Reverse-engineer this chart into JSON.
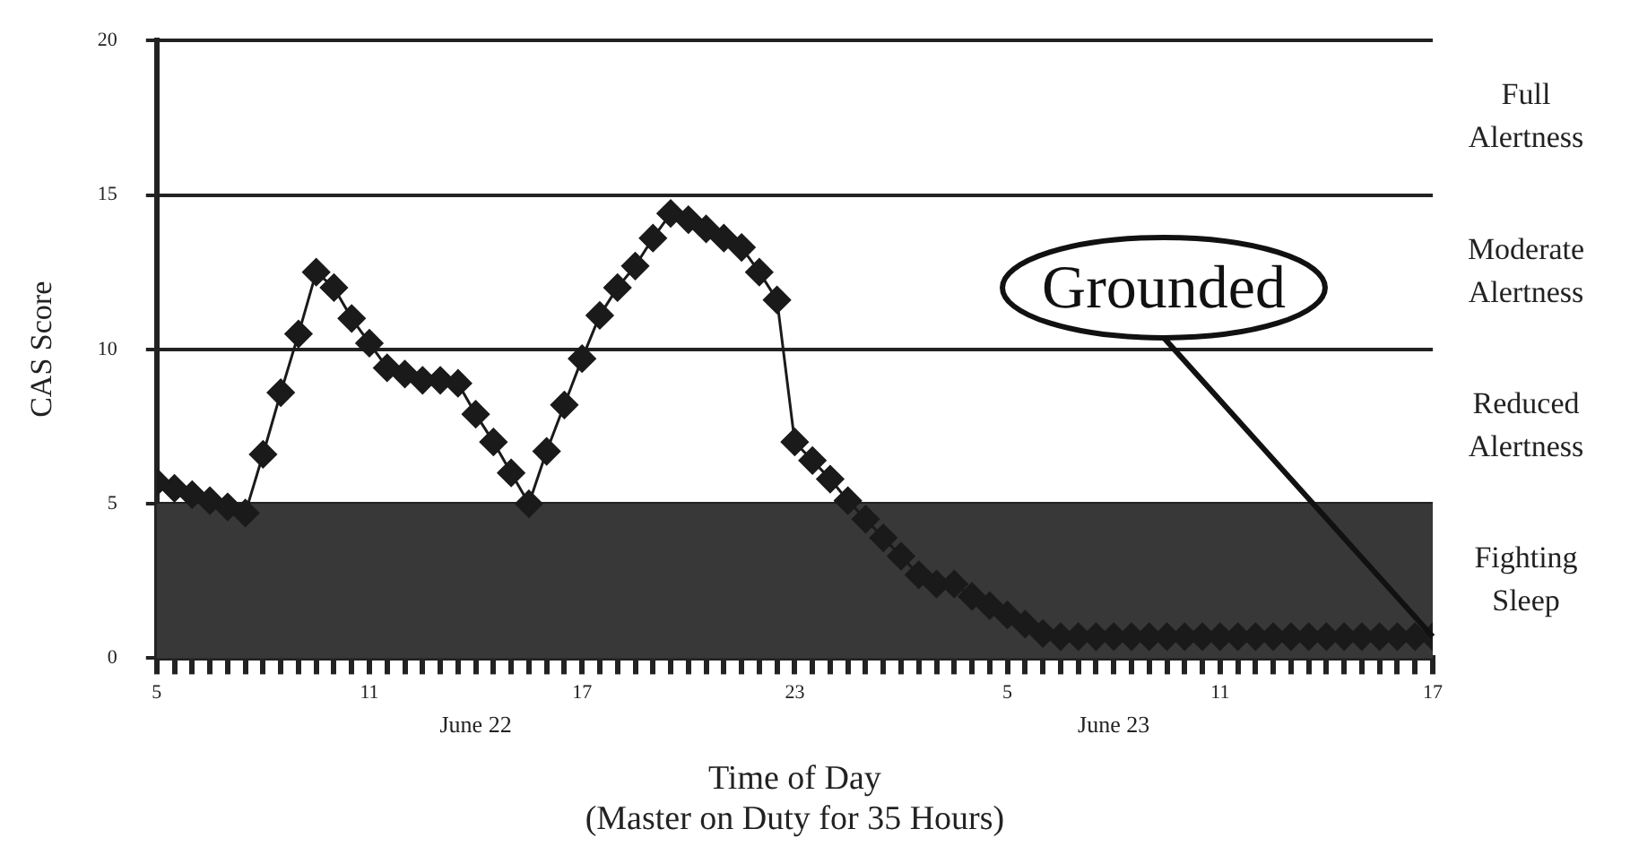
{
  "chart_data": {
    "type": "line",
    "xlabel": "Time of Day (Master on Duty for 35 Hours)",
    "ylabel": "CAS Score",
    "x": [
      "--06-22T05:00",
      "--06-22T05:30",
      "--06-22T06:00",
      "--06-22T06:30",
      "--06-22T07:00",
      "--06-22T07:30",
      "--06-22T08:00",
      "--06-22T08:30",
      "--06-22T09:00",
      "--06-22T09:30",
      "--06-22T10:00",
      "--06-22T10:30",
      "--06-22T11:00",
      "--06-22T11:30",
      "--06-22T12:00",
      "--06-22T12:30",
      "--06-22T13:00",
      "--06-22T13:30",
      "--06-22T14:00",
      "--06-22T14:30",
      "--06-22T15:00",
      "--06-22T15:30",
      "--06-22T16:00",
      "--06-22T16:30",
      "--06-22T17:00",
      "--06-22T17:30",
      "--06-22T18:00",
      "--06-22T18:30",
      "--06-22T19:00",
      "--06-22T19:30",
      "--06-22T20:00",
      "--06-22T20:30",
      "--06-22T21:00",
      "--06-22T21:30",
      "--06-22T22:00",
      "--06-22T22:30",
      "--06-22T23:00",
      "--06-22T23:30",
      "--06-23T00:00",
      "--06-23T00:30",
      "--06-23T01:00",
      "--06-23T01:30",
      "--06-23T02:00",
      "--06-23T02:30",
      "--06-23T03:00",
      "--06-23T03:30",
      "--06-23T04:00",
      "--06-23T04:30",
      "--06-23T05:00",
      "--06-23T05:30",
      "--06-23T06:00",
      "--06-23T06:30",
      "--06-23T07:00",
      "--06-23T07:30",
      "--06-23T08:00",
      "--06-23T08:30",
      "--06-23T09:00",
      "--06-23T09:30",
      "--06-23T10:00",
      "--06-23T10:30",
      "--06-23T11:00",
      "--06-23T11:30",
      "--06-23T12:00",
      "--06-23T12:30",
      "--06-23T13:00",
      "--06-23T13:30",
      "--06-23T14:00",
      "--06-23T14:30",
      "--06-23T15:00",
      "--06-23T15:30",
      "--06-23T16:00",
      "--06-23T16:30",
      "--06-23T17:00"
    ],
    "series": [
      {
        "color": "#1a1a1a",
        "values": [
          5.7,
          5.5,
          5.3,
          5.1,
          4.9,
          4.7,
          6.6,
          8.6,
          10.5,
          12.5,
          12.0,
          11.0,
          10.2,
          9.4,
          9.2,
          9.0,
          9.0,
          8.9,
          7.9,
          7.0,
          6.0,
          5.0,
          6.7,
          8.2,
          9.7,
          11.1,
          12.0,
          12.7,
          13.6,
          14.4,
          14.2,
          13.9,
          13.6,
          13.3,
          12.5,
          11.6,
          7.0,
          6.4,
          5.8,
          5.1,
          4.5,
          3.9,
          3.3,
          2.7,
          2.4,
          2.4,
          2.0,
          1.7,
          1.4,
          1.1,
          0.8,
          0.7,
          0.7,
          0.7,
          0.7,
          0.7,
          0.7,
          0.7,
          0.7,
          0.7,
          0.7,
          0.7,
          0.7,
          0.7,
          0.7,
          0.7,
          0.7,
          0.7,
          0.7,
          0.7,
          0.7,
          0.7,
          0.7
        ]
      }
    ],
    "xlim": [
      "--06-22T05:00",
      "--06-23T17:00"
    ],
    "xticks": [
      {
        "value": "--06-22T05:00",
        "label": "5"
      },
      {
        "value": "--06-22T05:30",
        "label": null
      },
      {
        "value": "--06-22T06:00",
        "label": null
      },
      {
        "value": "--06-22T06:30",
        "label": null
      },
      {
        "value": "--06-22T07:00",
        "label": null
      },
      {
        "value": "--06-22T07:30",
        "label": null
      },
      {
        "value": "--06-22T08:00",
        "label": null
      },
      {
        "value": "--06-22T08:30",
        "label": null
      },
      {
        "value": "--06-22T09:00",
        "label": null
      },
      {
        "value": "--06-22T09:30",
        "label": null
      },
      {
        "value": "--06-22T10:00",
        "label": null
      },
      {
        "value": "--06-22T10:30",
        "label": null
      },
      {
        "value": "--06-22T11:00",
        "label": "11"
      },
      {
        "value": "--06-22T11:30",
        "label": null
      },
      {
        "value": "--06-22T12:00",
        "label": null
      },
      {
        "value": "--06-22T12:30",
        "label": null
      },
      {
        "value": "--06-22T13:00",
        "label": null
      },
      {
        "value": "--06-22T13:30",
        "label": null
      },
      {
        "value": "--06-22T14:00",
        "label": null
      },
      {
        "value": "--06-22T14:30",
        "label": null
      },
      {
        "value": "--06-22T15:00",
        "label": null
      },
      {
        "value": "--06-22T15:30",
        "label": null
      },
      {
        "value": "--06-22T16:00",
        "label": null
      },
      {
        "value": "--06-22T16:30",
        "label": null
      },
      {
        "value": "--06-22T17:00",
        "label": "17"
      },
      {
        "value": "--06-22T17:30",
        "label": null
      },
      {
        "value": "--06-22T18:00",
        "label": null
      },
      {
        "value": "--06-22T18:30",
        "label": null
      },
      {
        "value": "--06-22T19:00",
        "label": null
      },
      {
        "value": "--06-22T19:30",
        "label": null
      },
      {
        "value": "--06-22T20:00",
        "label": null
      },
      {
        "value": "--06-22T20:30",
        "label": null
      },
      {
        "value": "--06-22T21:00",
        "label": null
      },
      {
        "value": "--06-22T21:30",
        "label": null
      },
      {
        "value": "--06-22T22:00",
        "label": null
      },
      {
        "value": "--06-22T22:30",
        "label": null
      },
      {
        "value": "--06-22T23:00",
        "label": "23"
      },
      {
        "value": "--06-22T23:30",
        "label": null
      },
      {
        "value": "--06-23T00:00",
        "label": null
      },
      {
        "value": "--06-23T00:30",
        "label": null
      },
      {
        "value": "--06-23T01:00",
        "label": null
      },
      {
        "value": "--06-23T01:30",
        "label": null
      },
      {
        "value": "--06-23T02:00",
        "label": null
      },
      {
        "value": "--06-23T02:30",
        "label": null
      },
      {
        "value": "--06-23T03:00",
        "label": null
      },
      {
        "value": "--06-23T03:30",
        "label": null
      },
      {
        "value": "--06-23T04:00",
        "label": null
      },
      {
        "value": "--06-23T04:30",
        "label": null
      },
      {
        "value": "--06-23T05:00",
        "label": "5"
      },
      {
        "value": "--06-23T05:30",
        "label": null
      },
      {
        "value": "--06-23T06:00",
        "label": null
      },
      {
        "value": "--06-23T06:30",
        "label": null
      },
      {
        "value": "--06-23T07:00",
        "label": null
      },
      {
        "value": "--06-23T07:30",
        "label": null
      },
      {
        "value": "--06-23T08:00",
        "label": null
      },
      {
        "value": "--06-23T08:30",
        "label": null
      },
      {
        "value": "--06-23T09:00",
        "label": null
      },
      {
        "value": "--06-23T09:30",
        "label": null
      },
      {
        "value": "--06-23T10:00",
        "label": null
      },
      {
        "value": "--06-23T10:30",
        "label": null
      },
      {
        "value": "--06-23T11:00",
        "label": "11"
      },
      {
        "value": "--06-23T11:30",
        "label": null
      },
      {
        "value": "--06-23T12:00",
        "label": null
      },
      {
        "value": "--06-23T12:30",
        "label": null
      },
      {
        "value": "--06-23T13:00",
        "label": null
      },
      {
        "value": "--06-23T13:30",
        "label": null
      },
      {
        "value": "--06-23T14:00",
        "label": null
      },
      {
        "value": "--06-23T14:30",
        "label": null
      },
      {
        "value": "--06-23T15:00",
        "label": null
      },
      {
        "value": "--06-23T15:30",
        "label": null
      },
      {
        "value": "--06-23T16:00",
        "label": null
      },
      {
        "value": "--06-23T16:30",
        "label": null
      },
      {
        "value": "--06-23T17:00",
        "label": "17"
      }
    ],
    "ylim": [
      0,
      20
    ],
    "yticks": [
      0,
      5,
      10,
      15,
      20
    ],
    "grid": "y",
    "marker": "diamond",
    "line_style": "solid",
    "bands": [
      {
        "axis": "y",
        "from": 0,
        "to": 5,
        "label": "Fighting Sleep",
        "color": "#383838"
      }
    ],
    "annotations": [
      "June 22",
      "June 23",
      "Reduced Alertness",
      "Moderate Alertness",
      "Full Alertness",
      {
        "text": "Grounded",
        "x": "--06-23T17:00",
        "y": 0.7
      }
    ]
  }
}
